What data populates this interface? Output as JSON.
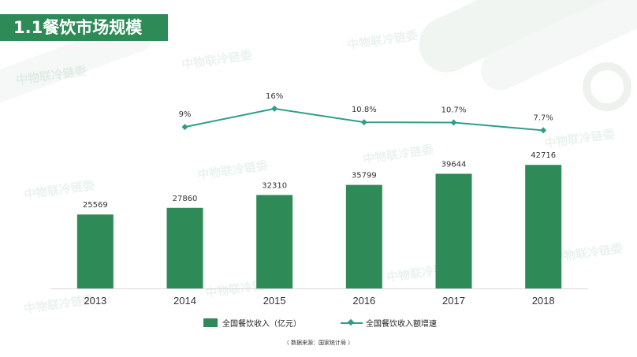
{
  "header": {
    "title": "1.1餐饮市场规模"
  },
  "watermark": "中物联冷链委",
  "source_note": "（ 数据来源：国家统计局 ）",
  "colors": {
    "bar": "#2e8b57",
    "line": "#2e9e8a",
    "title_bg": "#2e8b57"
  },
  "legend": {
    "bar_label": "全国餐饮收入（亿元）",
    "line_label": "全国餐饮收入额增速"
  },
  "chart_data": {
    "type": "bar",
    "categories": [
      "2013",
      "2014",
      "2015",
      "2016",
      "2017",
      "2018"
    ],
    "series": [
      {
        "name": "全国餐饮收入（亿元）",
        "type": "bar",
        "values": [
          25569,
          27860,
          32310,
          35799,
          39644,
          42716
        ]
      },
      {
        "name": "全国餐饮收入额增速",
        "type": "line",
        "values": [
          9,
          16,
          10.8,
          10.7,
          7.7
        ],
        "x": [
          "2014",
          "2015",
          "2016",
          "2017",
          "2018"
        ],
        "labels": [
          "9%",
          "16%",
          "10.8%",
          "10.7%",
          "7.7%"
        ]
      }
    ],
    "bar_labels": [
      "25569",
      "27860",
      "32310",
      "35799",
      "39644",
      "42716"
    ],
    "legend": "bottom",
    "grid": false
  }
}
